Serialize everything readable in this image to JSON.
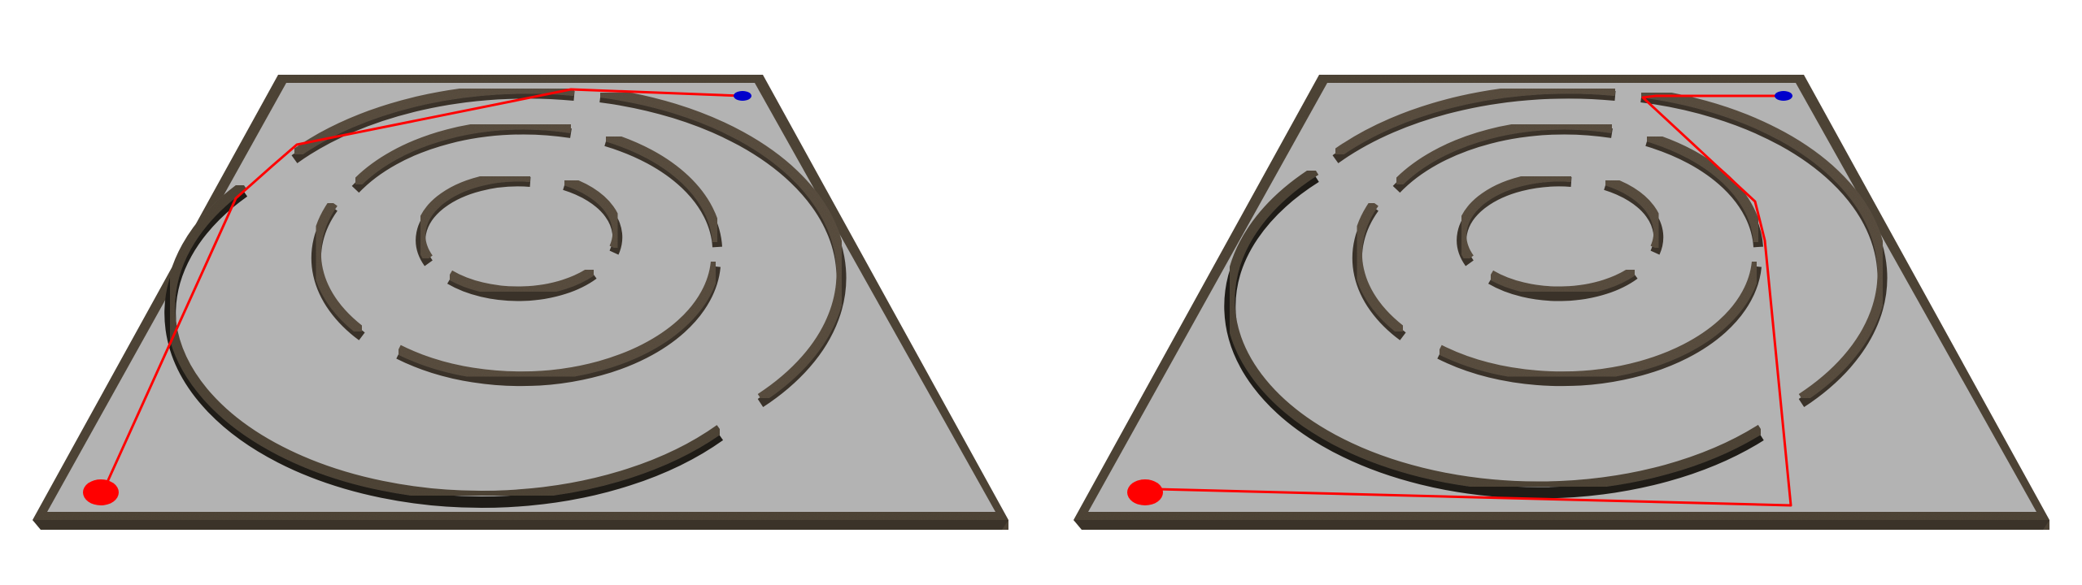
{
  "colors": {
    "background": "#ffffff",
    "floor": "#b3b3b3",
    "wall_top": "#5a4e40",
    "wall_side": "#3c342a",
    "wall_dark_side": "#1e1b16",
    "path": "#ff0000",
    "start_marker": "#ff0000",
    "goal_marker": "#0000cc"
  },
  "panels": [
    {
      "id": "left",
      "description": "maze-planning-view-left"
    },
    {
      "id": "right",
      "description": "maze-planning-view-right"
    }
  ]
}
